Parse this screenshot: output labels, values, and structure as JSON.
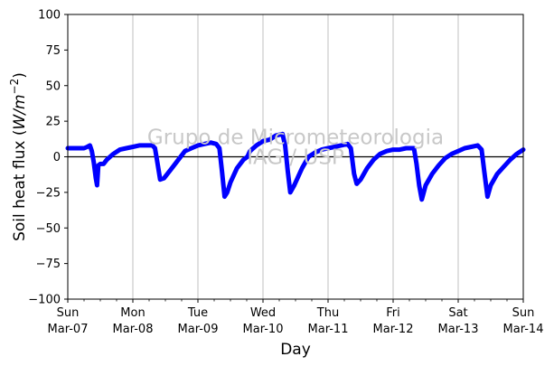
{
  "chart_data": {
    "type": "line",
    "xlabel": "Day",
    "ylabel_main": "Soil heat flux (",
    "ylabel_unit_base": "W/m",
    "ylabel_unit_exp": "−2",
    "ylabel_close": ")",
    "watermark_line1": "Grupo de Micrometeorologia",
    "watermark_line2": "IAG / USP",
    "ylim": [
      -100,
      100
    ],
    "yticks": [
      {
        "value": 100,
        "label": "100"
      },
      {
        "value": 75,
        "label": "75"
      },
      {
        "value": 50,
        "label": "50"
      },
      {
        "value": 25,
        "label": "25"
      },
      {
        "value": 0,
        "label": "0"
      },
      {
        "value": -25,
        "label": "−25"
      },
      {
        "value": -50,
        "label": "−50"
      },
      {
        "value": -75,
        "label": "−75"
      },
      {
        "value": -100,
        "label": "−100"
      }
    ],
    "xlim_days": [
      0,
      7
    ],
    "xticks": [
      {
        "day": 0,
        "weekday": "Sun",
        "date": "Mar-07"
      },
      {
        "day": 1,
        "weekday": "Mon",
        "date": "Mar-08"
      },
      {
        "day": 2,
        "weekday": "Tue",
        "date": "Mar-09"
      },
      {
        "day": 3,
        "weekday": "Wed",
        "date": "Mar-10"
      },
      {
        "day": 4,
        "weekday": "Thu",
        "date": "Mar-11"
      },
      {
        "day": 5,
        "weekday": "Fri",
        "date": "Mar-12"
      },
      {
        "day": 6,
        "weekday": "Sat",
        "date": "Mar-13"
      },
      {
        "day": 7,
        "weekday": "Sun",
        "date": "Mar-14"
      }
    ],
    "grid_x": true,
    "zero_line": true,
    "series": [
      {
        "color": "#0000ff",
        "points": [
          [
            0.0,
            6
          ],
          [
            0.1,
            6
          ],
          [
            0.25,
            6
          ],
          [
            0.3,
            7
          ],
          [
            0.34,
            8
          ],
          [
            0.37,
            4
          ],
          [
            0.4,
            -4
          ],
          [
            0.43,
            -15
          ],
          [
            0.45,
            -20
          ],
          [
            0.47,
            -6
          ],
          [
            0.5,
            -5
          ],
          [
            0.55,
            -5
          ],
          [
            0.6,
            -2
          ],
          [
            0.7,
            2
          ],
          [
            0.8,
            5
          ],
          [
            0.9,
            6
          ],
          [
            1.0,
            7
          ],
          [
            1.1,
            8
          ],
          [
            1.2,
            8
          ],
          [
            1.3,
            8
          ],
          [
            1.34,
            6
          ],
          [
            1.38,
            -5
          ],
          [
            1.42,
            -16
          ],
          [
            1.48,
            -15
          ],
          [
            1.6,
            -8
          ],
          [
            1.7,
            -2
          ],
          [
            1.8,
            4
          ],
          [
            1.9,
            6
          ],
          [
            2.0,
            8
          ],
          [
            2.1,
            9
          ],
          [
            2.2,
            10
          ],
          [
            2.28,
            9
          ],
          [
            2.33,
            6
          ],
          [
            2.37,
            -10
          ],
          [
            2.41,
            -28
          ],
          [
            2.45,
            -25
          ],
          [
            2.5,
            -18
          ],
          [
            2.6,
            -8
          ],
          [
            2.7,
            -2
          ],
          [
            2.76,
            0
          ],
          [
            2.8,
            4
          ],
          [
            2.9,
            8
          ],
          [
            3.0,
            11
          ],
          [
            3.1,
            12
          ],
          [
            3.2,
            15
          ],
          [
            3.3,
            16
          ],
          [
            3.34,
            8
          ],
          [
            3.38,
            -10
          ],
          [
            3.42,
            -25
          ],
          [
            3.48,
            -20
          ],
          [
            3.6,
            -8
          ],
          [
            3.7,
            0
          ],
          [
            3.8,
            3
          ],
          [
            3.9,
            5
          ],
          [
            4.0,
            6
          ],
          [
            4.1,
            7
          ],
          [
            4.2,
            8
          ],
          [
            4.3,
            9
          ],
          [
            4.35,
            6
          ],
          [
            4.4,
            -12
          ],
          [
            4.44,
            -19
          ],
          [
            4.5,
            -16
          ],
          [
            4.6,
            -8
          ],
          [
            4.7,
            -2
          ],
          [
            4.8,
            2
          ],
          [
            4.9,
            4
          ],
          [
            5.0,
            5
          ],
          [
            5.1,
            5
          ],
          [
            5.2,
            6
          ],
          [
            5.32,
            6
          ],
          [
            5.36,
            -5
          ],
          [
            5.4,
            -20
          ],
          [
            5.44,
            -30
          ],
          [
            5.5,
            -20
          ],
          [
            5.6,
            -12
          ],
          [
            5.7,
            -6
          ],
          [
            5.8,
            -1
          ],
          [
            5.9,
            2
          ],
          [
            6.0,
            4
          ],
          [
            6.1,
            6
          ],
          [
            6.2,
            7
          ],
          [
            6.3,
            8
          ],
          [
            6.36,
            5
          ],
          [
            6.4,
            -10
          ],
          [
            6.45,
            -28
          ],
          [
            6.5,
            -20
          ],
          [
            6.6,
            -12
          ],
          [
            6.7,
            -7
          ],
          [
            6.8,
            -2
          ],
          [
            6.9,
            2
          ],
          [
            7.0,
            5
          ]
        ]
      }
    ]
  }
}
